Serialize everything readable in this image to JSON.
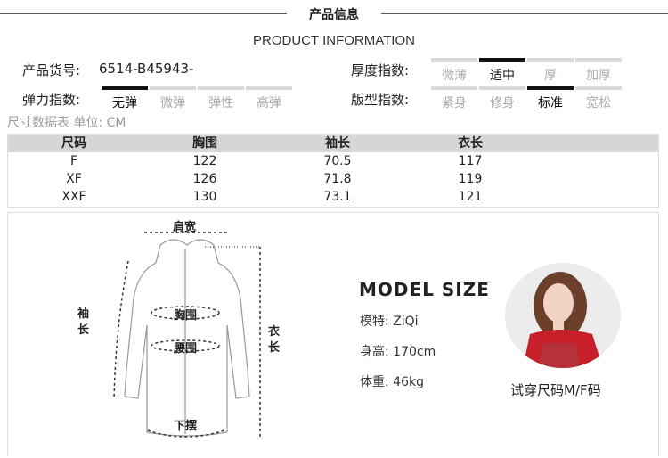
{
  "header": {
    "title": "产品信息",
    "subtitle": "PRODUCT INFORMATION"
  },
  "product": {
    "code_label": "产品货号:",
    "code_value": "6514-B45943-"
  },
  "thickness": {
    "label": "厚度指数:",
    "options": [
      "微薄",
      "适中",
      "厚",
      "加厚"
    ],
    "selected": "适中"
  },
  "elasticity": {
    "label": "弹力指数:",
    "options": [
      "无弹",
      "微弹",
      "弹性",
      "高弹"
    ],
    "selected": "无弹"
  },
  "fit": {
    "label": "版型指数:",
    "options": [
      "紧身",
      "修身",
      "标准",
      "宽松"
    ],
    "selected": "标准"
  },
  "size_table": {
    "caption": "尺寸数据表 单位: CM",
    "headers": [
      "尺码",
      "胸围",
      "袖长",
      "衣长"
    ],
    "rows": [
      [
        "F",
        "122",
        "70.5",
        "117"
      ],
      [
        "XF",
        "126",
        "71.8",
        "119"
      ],
      [
        "XXF",
        "130",
        "73.1",
        "121"
      ]
    ]
  },
  "diagram": {
    "shoulder": "肩宽",
    "sleeve": "袖长",
    "chest": "胸围",
    "waist": "腰围",
    "hem": "下摆",
    "length": "衣长"
  },
  "model": {
    "title": "MODEL SIZE",
    "name": "模特: ZiQi",
    "height": "身高: 170cm",
    "weight": "体重: 46kg",
    "trial_size": "试穿尺码M/F码"
  },
  "colors": {
    "selected_bar": "#111111",
    "unselected_bar": "#d9d9d9",
    "table_header": "#d6d6d6"
  }
}
